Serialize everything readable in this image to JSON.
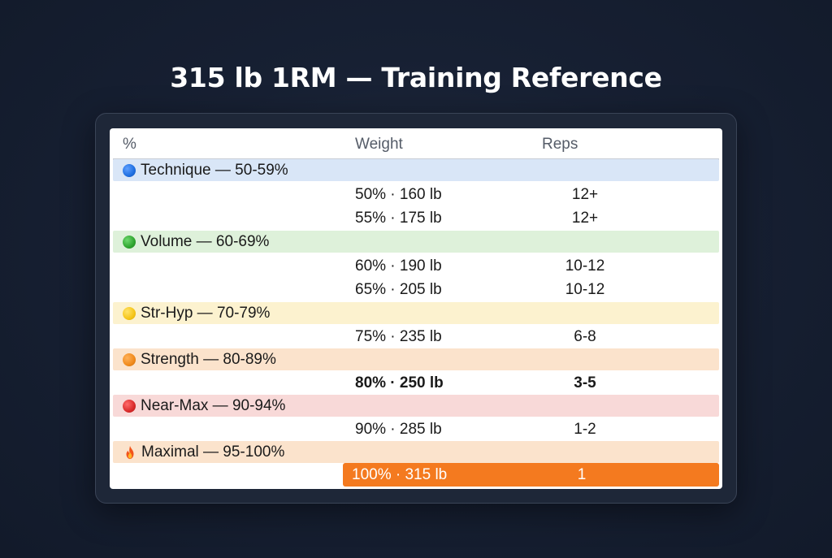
{
  "title": "315 lb 1RM — Training Reference",
  "columns": {
    "pct": "%",
    "weight": "Weight",
    "reps": "Reps"
  },
  "groups": [
    {
      "label": "Technique — 50-59%",
      "icon": "blue-circle-icon",
      "color": "#d9e6f7",
      "dot_color": "#1f6fe0",
      "rows": [
        {
          "weight": "50% · 160 lb",
          "reps": "12+"
        },
        {
          "weight": "55% · 175 lb",
          "reps": "12+"
        }
      ]
    },
    {
      "label": "Volume — 60-69%",
      "icon": "green-circle-icon",
      "color": "#def1da",
      "dot_color": "#2fa52f",
      "rows": [
        {
          "weight": "60% · 190 lb",
          "reps": "10-12"
        },
        {
          "weight": "65% · 205 lb",
          "reps": "10-12"
        }
      ]
    },
    {
      "label": "Str-Hyp — 70-79%",
      "icon": "yellow-circle-icon",
      "color": "#fcf2cf",
      "dot_color": "#f5c518",
      "rows": [
        {
          "weight": "75% · 235 lb",
          "reps": "6-8"
        }
      ]
    },
    {
      "label": "Strength — 80-89%",
      "icon": "orange-circle-icon",
      "color": "#fbe3cc",
      "dot_color": "#f08a1c",
      "rows": [
        {
          "weight": "80% · 250 lb",
          "reps": "3-5",
          "bold": true
        }
      ]
    },
    {
      "label": "Near-Max — 90-94%",
      "icon": "red-circle-icon",
      "color": "#f8d9d8",
      "dot_color": "#d92b2b",
      "rows": [
        {
          "weight": "90% · 285 lb",
          "reps": "1-2"
        }
      ]
    },
    {
      "label": "Maximal — 95-100%",
      "icon": "fire-icon",
      "color": "#fbe3cc",
      "dot_color": "#f26a1b",
      "rows": [
        {
          "weight": "100% · 315 lb",
          "reps": "1",
          "highlight": true
        }
      ]
    }
  ],
  "colors": {
    "background": "#172033",
    "highlight": "#f47a1f"
  }
}
